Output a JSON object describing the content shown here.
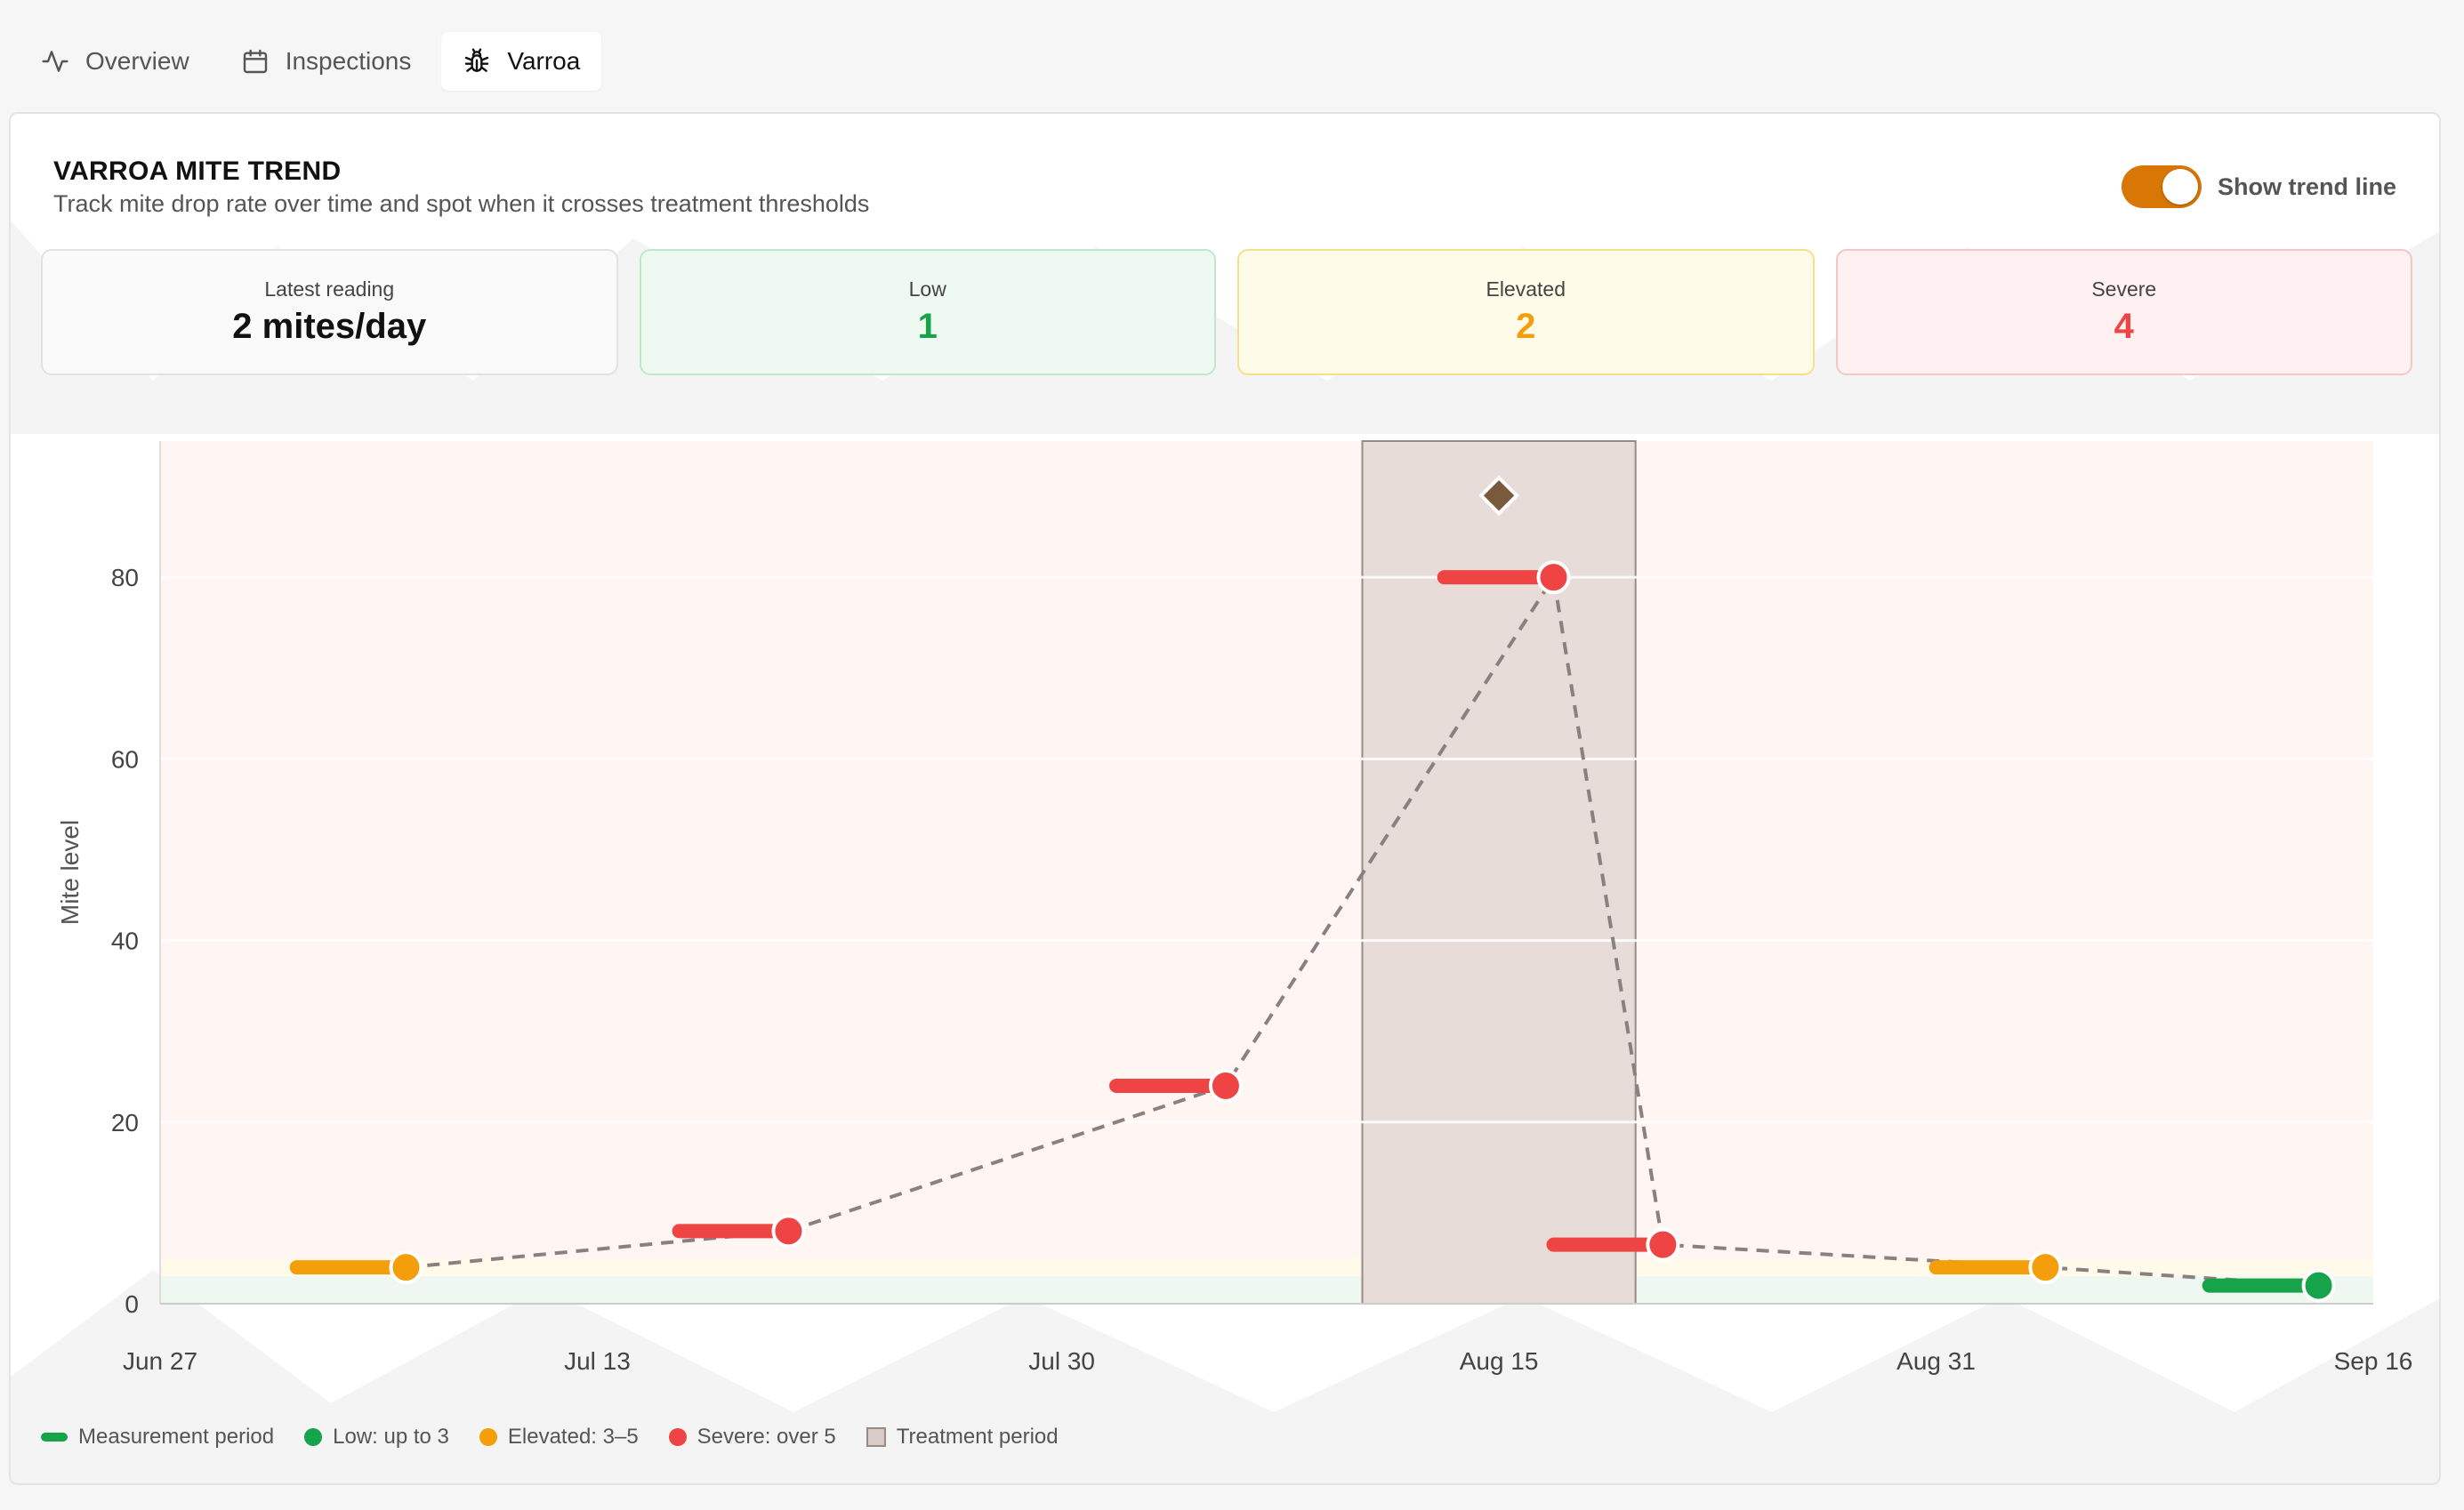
{
  "tabs": [
    {
      "label": "Overview",
      "icon": "activity-icon"
    },
    {
      "label": "Inspections",
      "icon": "calendar-icon"
    },
    {
      "label": "Varroa",
      "icon": "bug-icon",
      "active": true
    }
  ],
  "card": {
    "title": "VARROA MITE TREND",
    "subtitle": "Track mite drop rate over time and spot when it crosses treatment thresholds",
    "toggle_label": "Show trend line",
    "toggle_on": true
  },
  "stats": {
    "latest": {
      "label": "Latest reading",
      "value": "2 mites/day"
    },
    "low": {
      "label": "Low",
      "value": "1"
    },
    "elevated": {
      "label": "Elevated",
      "value": "2"
    },
    "severe": {
      "label": "Severe",
      "value": "4"
    }
  },
  "legend": {
    "measurement": "Measurement period",
    "low": "Low: up to 3",
    "elevated": "Elevated: 3–5",
    "severe": "Severe: over 5",
    "treatment": "Treatment period"
  },
  "colors": {
    "low": "#16a34a",
    "elevated": "#f59e0b",
    "severe": "#ef4444",
    "accent": "#d97706",
    "treatment_fill": "#e8dcd8",
    "treatment_stroke": "#9a8a84",
    "trend": "#8a8080"
  },
  "chart_data": {
    "type": "line",
    "ylabel": "Mite level",
    "ylim": [
      0,
      95
    ],
    "yticks": [
      0,
      20,
      40,
      60,
      80
    ],
    "xlim": [
      "2024-06-27",
      "2024-09-16"
    ],
    "xticks": [
      "Jun 27",
      "Jul 13",
      "Jul 30",
      "Aug 15",
      "Aug 31",
      "Sep 16"
    ],
    "xtick_dates": [
      "2024-06-27",
      "2024-07-13",
      "2024-07-30",
      "2024-08-15",
      "2024-08-31",
      "2024-09-16"
    ],
    "thresholds": {
      "low_max": 3,
      "elevated_max": 5
    },
    "series": [
      {
        "start": "2024-07-02",
        "end": "2024-07-06",
        "value": 4,
        "level": "elevated"
      },
      {
        "start": "2024-07-16",
        "end": "2024-07-20",
        "value": 8,
        "level": "severe"
      },
      {
        "start": "2024-08-01",
        "end": "2024-08-05",
        "value": 24,
        "level": "severe"
      },
      {
        "start": "2024-08-13",
        "end": "2024-08-17",
        "value": 80,
        "level": "severe"
      },
      {
        "start": "2024-08-17",
        "end": "2024-08-21",
        "value": 6.5,
        "level": "severe"
      },
      {
        "start": "2024-08-31",
        "end": "2024-09-04",
        "value": 4,
        "level": "elevated"
      },
      {
        "start": "2024-09-10",
        "end": "2024-09-14",
        "value": 2,
        "level": "low"
      }
    ],
    "treatment_period": {
      "start": "2024-08-10",
      "end": "2024-08-20"
    },
    "treatment_marker": {
      "date": "2024-08-15",
      "value": 89
    },
    "trend_line": true,
    "grid": true
  }
}
